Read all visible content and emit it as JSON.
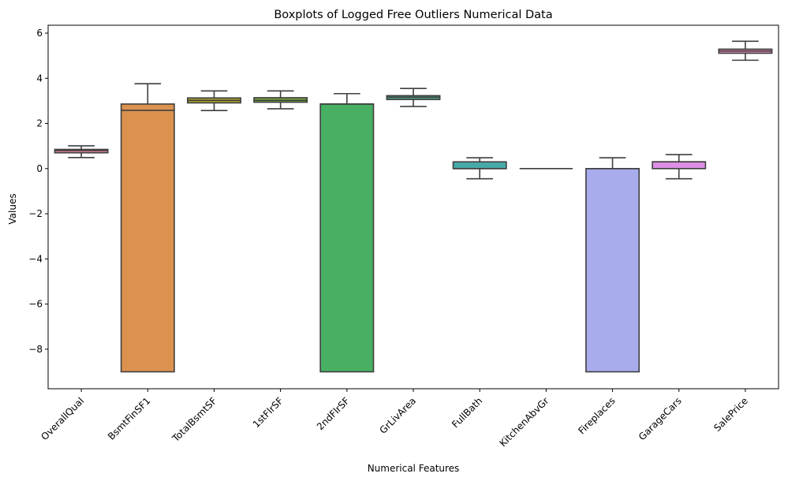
{
  "chart_data": {
    "type": "boxplot",
    "title": "Boxplots of Logged Free Outliers Numerical Data",
    "xlabel": "Numerical Features",
    "ylabel": "Values",
    "ylim": [
      -9.75,
      6.35
    ],
    "yticks": [
      -8,
      -6,
      -4,
      -2,
      0,
      2,
      4,
      6
    ],
    "ytick_labels": [
      "−8",
      "−6",
      "−4",
      "−2",
      "0",
      "2",
      "4",
      "6"
    ],
    "grid": false,
    "series": [
      {
        "category": "OverallQual",
        "color": "#e8829a",
        "whisker_low": 0.49,
        "q1": 0.7,
        "median": 0.8,
        "q3": 0.85,
        "whisker_high": 1.01
      },
      {
        "category": "BsmtFinSF1",
        "color": "#dc924f",
        "whisker_low": -9.0,
        "q1": -9.0,
        "median": 2.58,
        "q3": 2.86,
        "whisker_high": 3.76
      },
      {
        "category": "TotalBsmtSF",
        "color": "#aaa030",
        "whisker_low": 2.57,
        "q1": 2.91,
        "median": 3.02,
        "q3": 3.13,
        "whisker_high": 3.44
      },
      {
        "category": "1stFlrSF",
        "color": "#74a43a",
        "whisker_low": 2.65,
        "q1": 2.94,
        "median": 3.02,
        "q3": 3.14,
        "whisker_high": 3.44
      },
      {
        "category": "2ndFlrSF",
        "color": "#48b062",
        "whisker_low": -9.0,
        "q1": -9.0,
        "median": 2.86,
        "q3": 2.86,
        "whisker_high": 3.32
      },
      {
        "category": "GrLivArea",
        "color": "#4bab8c",
        "whisker_low": 2.75,
        "q1": 3.06,
        "median": 3.16,
        "q3": 3.23,
        "whisker_high": 3.55
      },
      {
        "category": "FullBath",
        "color": "#48aaa8",
        "whisker_low": -0.45,
        "q1": 0.0,
        "median": 0.0,
        "q3": 0.3,
        "whisker_high": 0.48
      },
      {
        "category": "KitchenAbvGr",
        "color": "#4ca8c7",
        "whisker_low": 0.0,
        "q1": 0.0,
        "median": 0.0,
        "q3": 0.0,
        "whisker_high": 0.0
      },
      {
        "category": "Fireplaces",
        "color": "#a8aced",
        "whisker_low": -9.0,
        "q1": -9.0,
        "median": 0.0,
        "q3": 0.0,
        "whisker_high": 0.48
      },
      {
        "category": "GarageCars",
        "color": "#dc8fe6",
        "whisker_low": -0.45,
        "q1": 0.0,
        "median": 0.3,
        "q3": 0.3,
        "whisker_high": 0.62
      },
      {
        "category": "SalePrice",
        "color": "#e58bbd",
        "whisker_low": 4.8,
        "q1": 5.11,
        "median": 5.21,
        "q3": 5.29,
        "whisker_high": 5.64
      }
    ]
  }
}
